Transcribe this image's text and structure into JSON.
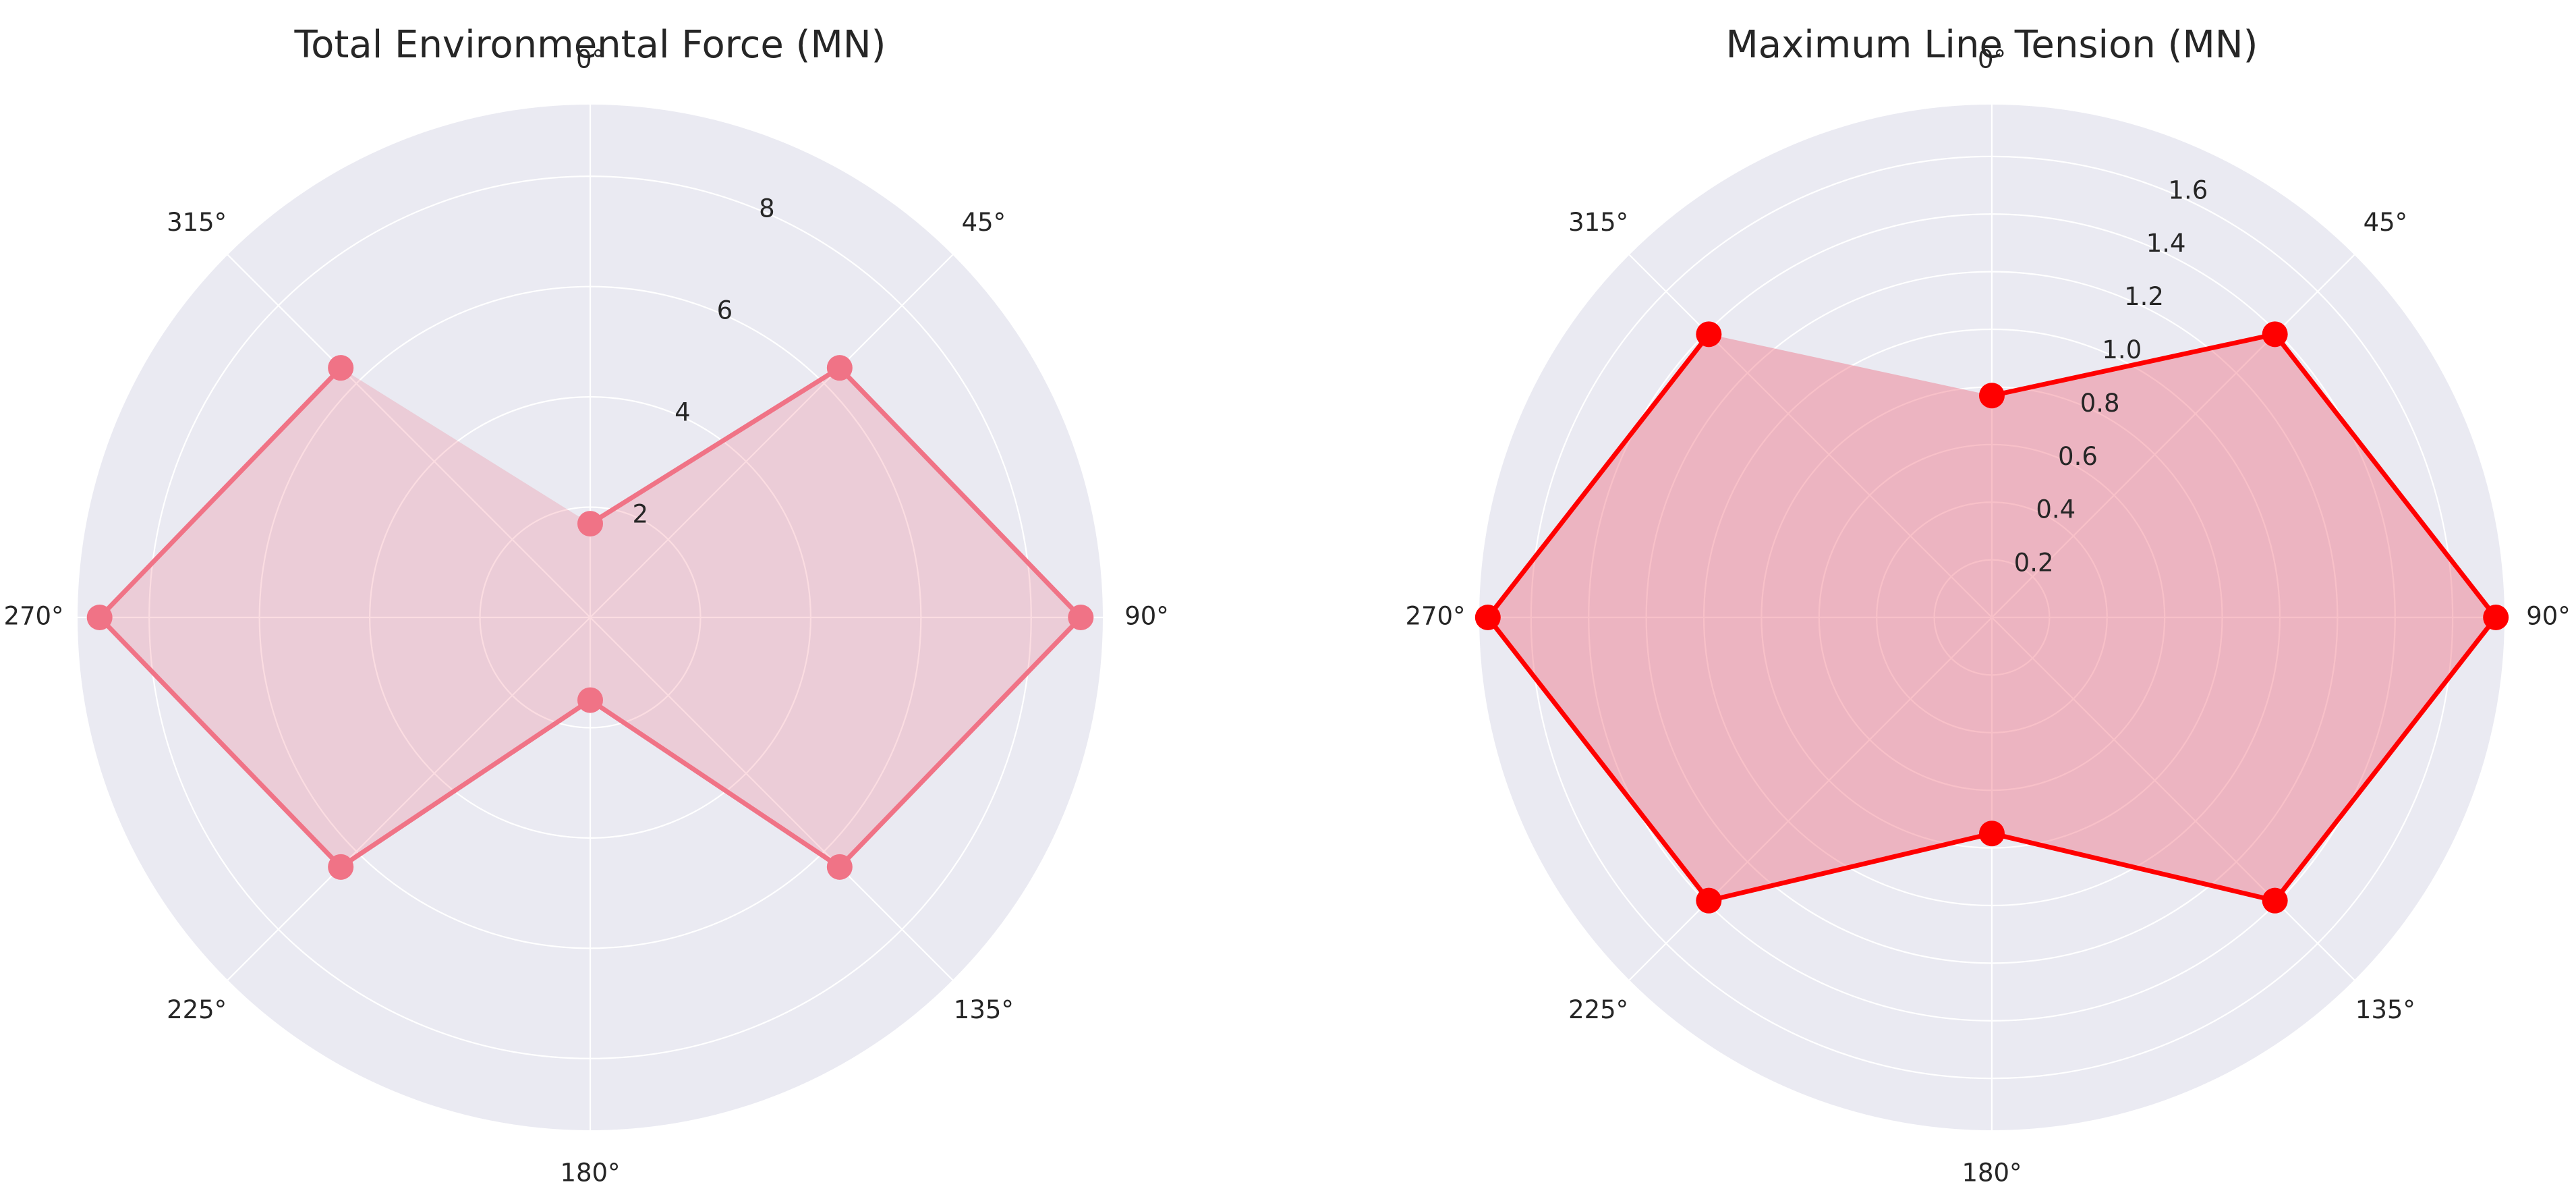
{
  "colors": {
    "background": "#ffffff",
    "axes_face": "#eaeaf2",
    "grid": "#ffffff",
    "text": "#262626"
  },
  "chart_data": [
    {
      "type": "radar",
      "title": "Total Environmental Force (MN)",
      "angles_deg": [
        0,
        45,
        90,
        135,
        180,
        225,
        270,
        315
      ],
      "theta_tick_labels": [
        "0°",
        "45°",
        "90°",
        "135°",
        "180°",
        "225°",
        "270°",
        "315°"
      ],
      "theta_zero_location": "N",
      "theta_direction": "clockwise",
      "radial_ticks": [
        2,
        4,
        6,
        8
      ],
      "radial_tick_labels": [
        "2",
        "4",
        "6",
        "8"
      ],
      "rlim": [
        0,
        9.3
      ],
      "grid": true,
      "series": [
        {
          "values": [
            1.7,
            6.4,
            8.9,
            6.4,
            1.5,
            6.4,
            8.9,
            6.4
          ],
          "color": "#f07386",
          "fill_color": "#f07386",
          "fill_opacity": 0.25
        }
      ]
    },
    {
      "type": "radar",
      "title": "Maximum Line Tension (MN)",
      "angles_deg": [
        0,
        45,
        90,
        135,
        180,
        225,
        270,
        315
      ],
      "theta_tick_labels": [
        "0°",
        "45°",
        "90°",
        "135°",
        "180°",
        "225°",
        "270°",
        "315°"
      ],
      "theta_zero_location": "N",
      "theta_direction": "clockwise",
      "radial_ticks": [
        0.2,
        0.4,
        0.6,
        0.8,
        1.0,
        1.2,
        1.4,
        1.6
      ],
      "radial_tick_labels": [
        "0.2",
        "0.4",
        "0.6",
        "0.8",
        "1.0",
        "1.2",
        "1.4",
        "1.6"
      ],
      "rlim": [
        0,
        1.78
      ],
      "grid": true,
      "series": [
        {
          "values": [
            0.77,
            1.39,
            1.75,
            1.39,
            0.75,
            1.39,
            1.75,
            1.39
          ],
          "color": "#ff0000",
          "fill_color": "#f07386",
          "fill_opacity": 0.45
        }
      ]
    }
  ]
}
